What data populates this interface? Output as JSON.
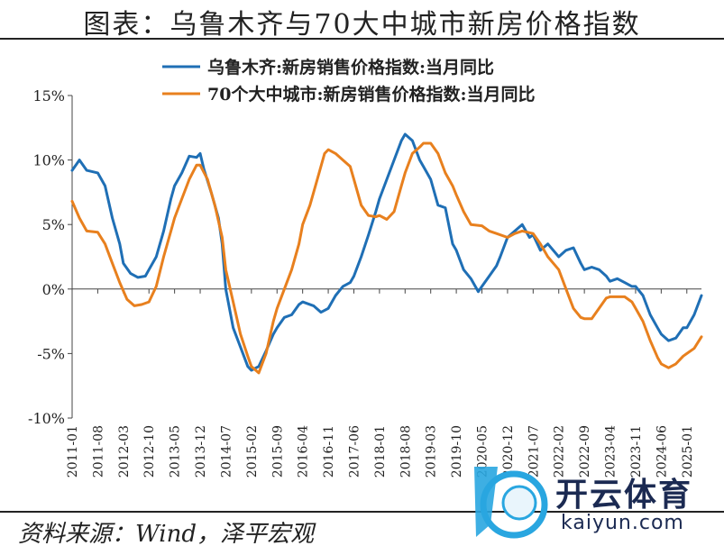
{
  "header": {
    "title": "图表：乌鲁木齐与70大中城市新房价格指数"
  },
  "footer": {
    "source": "资料来源：Wind，泽平宏观"
  },
  "watermark": {
    "brand": "开云体育",
    "site": "kaiyun.com"
  },
  "chart_data": {
    "type": "line",
    "title": "",
    "xlabel": "",
    "ylabel": "",
    "ylim": [
      -10,
      15
    ],
    "yticks": [
      -10,
      -5,
      0,
      5,
      10,
      15
    ],
    "ytick_labels": [
      "-10%",
      "-5%",
      "0%",
      "5%",
      "10%",
      "15%"
    ],
    "x_start": "2011-01",
    "x_end": "2025-05",
    "x_tick_labels": [
      "2011-01",
      "2011-08",
      "2012-03",
      "2012-10",
      "2013-05",
      "2013-12",
      "2014-07",
      "2015-02",
      "2015-09",
      "2016-04",
      "2016-11",
      "2017-06",
      "2018-01",
      "2018-08",
      "2019-03",
      "2019-10",
      "2020-05",
      "2020-12",
      "2021-07",
      "2022-02",
      "2022-09",
      "2023-04",
      "2023-11",
      "2024-06",
      "2025-01"
    ],
    "legend": {
      "placement": "top-center"
    },
    "grid": false,
    "series": [
      {
        "name": "乌鲁木齐:新房销售价格指数:当月同比",
        "color": "#1f6fb5",
        "points": [
          [
            "2011-01",
            9.2
          ],
          [
            "2011-03",
            10.0
          ],
          [
            "2011-05",
            9.2
          ],
          [
            "2011-08",
            9.0
          ],
          [
            "2011-10",
            8.0
          ],
          [
            "2011-12",
            5.5
          ],
          [
            "2012-02",
            3.5
          ],
          [
            "2012-03",
            2.0
          ],
          [
            "2012-05",
            1.2
          ],
          [
            "2012-07",
            0.9
          ],
          [
            "2012-09",
            1.0
          ],
          [
            "2012-10",
            1.5
          ],
          [
            "2012-12",
            2.5
          ],
          [
            "2013-02",
            4.5
          ],
          [
            "2013-04",
            7.0
          ],
          [
            "2013-05",
            8.0
          ],
          [
            "2013-07",
            9.0
          ],
          [
            "2013-09",
            10.3
          ],
          [
            "2013-11",
            10.2
          ],
          [
            "2013-12",
            10.5
          ],
          [
            "2014-01",
            9.3
          ],
          [
            "2014-03",
            7.5
          ],
          [
            "2014-05",
            5.5
          ],
          [
            "2014-06",
            3.5
          ],
          [
            "2014-07",
            0.0
          ],
          [
            "2014-09",
            -3.0
          ],
          [
            "2014-11",
            -4.5
          ],
          [
            "2015-01",
            -6.0
          ],
          [
            "2015-02",
            -6.3
          ],
          [
            "2015-04",
            -6.0
          ],
          [
            "2015-06",
            -4.8
          ],
          [
            "2015-08",
            -3.5
          ],
          [
            "2015-09",
            -3.0
          ],
          [
            "2015-11",
            -2.2
          ],
          [
            "2016-01",
            -2.0
          ],
          [
            "2016-03",
            -1.2
          ],
          [
            "2016-04",
            -1.0
          ],
          [
            "2016-07",
            -1.3
          ],
          [
            "2016-09",
            -1.8
          ],
          [
            "2016-11",
            -1.5
          ],
          [
            "2017-01",
            -0.5
          ],
          [
            "2017-03",
            0.2
          ],
          [
            "2017-05",
            0.5
          ],
          [
            "2017-06",
            1.0
          ],
          [
            "2017-08",
            2.5
          ],
          [
            "2017-10",
            4.2
          ],
          [
            "2017-12",
            6.0
          ],
          [
            "2018-01",
            7.0
          ],
          [
            "2018-03",
            8.5
          ],
          [
            "2018-05",
            10.0
          ],
          [
            "2018-07",
            11.5
          ],
          [
            "2018-08",
            12.0
          ],
          [
            "2018-10",
            11.5
          ],
          [
            "2018-12",
            10.0
          ],
          [
            "2019-01",
            9.5
          ],
          [
            "2019-03",
            8.5
          ],
          [
            "2019-05",
            6.5
          ],
          [
            "2019-07",
            6.3
          ],
          [
            "2019-09",
            3.5
          ],
          [
            "2019-10",
            3.0
          ],
          [
            "2019-12",
            1.5
          ],
          [
            "2020-02",
            0.8
          ],
          [
            "2020-04",
            -0.2
          ],
          [
            "2020-05",
            0.2
          ],
          [
            "2020-07",
            1.0
          ],
          [
            "2020-09",
            1.8
          ],
          [
            "2020-10",
            2.5
          ],
          [
            "2020-12",
            4.0
          ],
          [
            "2021-02",
            4.5
          ],
          [
            "2021-04",
            5.0
          ],
          [
            "2021-06",
            4.0
          ],
          [
            "2021-07",
            4.2
          ],
          [
            "2021-09",
            3.0
          ],
          [
            "2021-11",
            3.5
          ],
          [
            "2022-02",
            2.5
          ],
          [
            "2022-04",
            3.0
          ],
          [
            "2022-06",
            3.2
          ],
          [
            "2022-08",
            2.0
          ],
          [
            "2022-09",
            1.5
          ],
          [
            "2022-11",
            1.7
          ],
          [
            "2023-01",
            1.5
          ],
          [
            "2023-03",
            1.0
          ],
          [
            "2023-04",
            0.6
          ],
          [
            "2023-06",
            0.8
          ],
          [
            "2023-08",
            0.5
          ],
          [
            "2023-10",
            0.2
          ],
          [
            "2023-11",
            0.2
          ],
          [
            "2024-01",
            -0.5
          ],
          [
            "2024-03",
            -2.0
          ],
          [
            "2024-05",
            -3.0
          ],
          [
            "2024-06",
            -3.5
          ],
          [
            "2024-08",
            -4.0
          ],
          [
            "2024-10",
            -3.8
          ],
          [
            "2024-12",
            -3.0
          ],
          [
            "2025-01",
            -3.0
          ],
          [
            "2025-03",
            -2.0
          ],
          [
            "2025-05",
            -0.5
          ]
        ]
      },
      {
        "name": "70个大中城市:新房销售价格指数:当月同比",
        "color": "#e8801e",
        "points": [
          [
            "2011-01",
            6.8
          ],
          [
            "2011-03",
            5.5
          ],
          [
            "2011-05",
            4.5
          ],
          [
            "2011-08",
            4.4
          ],
          [
            "2011-10",
            3.5
          ],
          [
            "2011-12",
            2.0
          ],
          [
            "2012-02",
            0.5
          ],
          [
            "2012-04",
            -0.8
          ],
          [
            "2012-06",
            -1.3
          ],
          [
            "2012-08",
            -1.2
          ],
          [
            "2012-10",
            -1.0
          ],
          [
            "2012-12",
            0.2
          ],
          [
            "2013-02",
            2.5
          ],
          [
            "2013-04",
            4.5
          ],
          [
            "2013-05",
            5.5
          ],
          [
            "2013-07",
            7.0
          ],
          [
            "2013-09",
            8.5
          ],
          [
            "2013-11",
            9.6
          ],
          [
            "2013-12",
            9.6
          ],
          [
            "2014-02",
            8.5
          ],
          [
            "2014-04",
            6.5
          ],
          [
            "2014-06",
            4.0
          ],
          [
            "2014-07",
            1.5
          ],
          [
            "2014-09",
            -1.0
          ],
          [
            "2014-11",
            -3.5
          ],
          [
            "2015-01",
            -5.2
          ],
          [
            "2015-02",
            -6.0
          ],
          [
            "2015-04",
            -6.5
          ],
          [
            "2015-06",
            -5.0
          ],
          [
            "2015-08",
            -2.5
          ],
          [
            "2015-09",
            -1.5
          ],
          [
            "2015-11",
            0.0
          ],
          [
            "2016-01",
            1.5
          ],
          [
            "2016-03",
            3.5
          ],
          [
            "2016-04",
            5.0
          ],
          [
            "2016-06",
            6.5
          ],
          [
            "2016-08",
            8.5
          ],
          [
            "2016-10",
            10.5
          ],
          [
            "2016-11",
            10.8
          ],
          [
            "2017-01",
            10.5
          ],
          [
            "2017-03",
            10.0
          ],
          [
            "2017-05",
            9.5
          ],
          [
            "2017-06",
            8.5
          ],
          [
            "2017-08",
            6.5
          ],
          [
            "2017-10",
            5.7
          ],
          [
            "2017-12",
            5.6
          ],
          [
            "2018-01",
            5.7
          ],
          [
            "2018-03",
            5.4
          ],
          [
            "2018-05",
            6.0
          ],
          [
            "2018-07",
            8.0
          ],
          [
            "2018-08",
            9.0
          ],
          [
            "2018-10",
            10.5
          ],
          [
            "2018-12",
            11.0
          ],
          [
            "2019-01",
            11.3
          ],
          [
            "2019-03",
            11.3
          ],
          [
            "2019-05",
            10.5
          ],
          [
            "2019-07",
            9.0
          ],
          [
            "2019-09",
            8.0
          ],
          [
            "2019-10",
            7.3
          ],
          [
            "2019-12",
            6.0
          ],
          [
            "2020-02",
            5.0
          ],
          [
            "2020-05",
            4.9
          ],
          [
            "2020-07",
            4.5
          ],
          [
            "2020-09",
            4.3
          ],
          [
            "2020-12",
            4.0
          ],
          [
            "2021-02",
            4.3
          ],
          [
            "2021-04",
            4.5
          ],
          [
            "2021-07",
            4.3
          ],
          [
            "2021-09",
            3.5
          ],
          [
            "2021-11",
            2.5
          ],
          [
            "2022-02",
            1.5
          ],
          [
            "2022-04",
            0.0
          ],
          [
            "2022-06",
            -1.5
          ],
          [
            "2022-08",
            -2.2
          ],
          [
            "2022-09",
            -2.3
          ],
          [
            "2022-11",
            -2.3
          ],
          [
            "2023-01",
            -1.5
          ],
          [
            "2023-03",
            -0.7
          ],
          [
            "2023-04",
            -0.6
          ],
          [
            "2023-06",
            -0.6
          ],
          [
            "2023-08",
            -0.6
          ],
          [
            "2023-10",
            -1.0
          ],
          [
            "2023-11",
            -1.5
          ],
          [
            "2024-01",
            -2.5
          ],
          [
            "2024-03",
            -4.0
          ],
          [
            "2024-05",
            -5.3
          ],
          [
            "2024-06",
            -5.8
          ],
          [
            "2024-08",
            -6.1
          ],
          [
            "2024-10",
            -5.8
          ],
          [
            "2024-12",
            -5.2
          ],
          [
            "2025-01",
            -5.0
          ],
          [
            "2025-03",
            -4.6
          ],
          [
            "2025-05",
            -3.7
          ]
        ]
      }
    ]
  }
}
